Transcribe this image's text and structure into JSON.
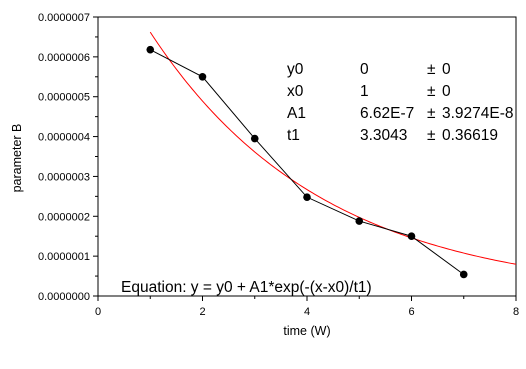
{
  "chart_data": {
    "type": "scatter",
    "xlabel": "time (W)",
    "ylabel": "parameter B",
    "xlim": [
      0,
      8
    ],
    "ylim": [
      0,
      7e-07
    ],
    "x_ticks": [
      0,
      2,
      4,
      6,
      8
    ],
    "x_tick_labels": [
      "0",
      "2",
      "4",
      "6",
      "8"
    ],
    "y_ticks": [
      0,
      1e-07,
      2e-07,
      3e-07,
      4e-07,
      5e-07,
      6e-07,
      7e-07
    ],
    "y_tick_labels": [
      "0.0000000",
      "0.0000001",
      "0.0000002",
      "0.0000003",
      "0.0000004",
      "0.0000005",
      "0.0000006",
      "0.0000007"
    ],
    "grid": false,
    "series": [
      {
        "kind": "data-points-with-line",
        "color": "#000000",
        "x": [
          1,
          2,
          3,
          4,
          5,
          6,
          7
        ],
        "y": [
          6.18e-07,
          5.5e-07,
          3.95e-07,
          2.48e-07,
          1.88e-07,
          1.5e-07,
          5.4e-08
        ]
      },
      {
        "kind": "fit-curve",
        "color": "#ff0000",
        "equation": "y = y0 + A1*exp(-(x-x0)/t1)",
        "params": {
          "y0": 0,
          "x0": 1,
          "A1": 6.62e-07,
          "t1": 3.3043
        },
        "x_range": [
          1,
          8
        ]
      }
    ],
    "annotations": {
      "params_table": [
        {
          "name": "y0",
          "value": "0",
          "pm": "±",
          "err": "0"
        },
        {
          "name": "x0",
          "value": "1",
          "pm": "±",
          "err": "0"
        },
        {
          "name": "A1",
          "value": "6.62E-7",
          "pm": "±",
          "err": "3.9274E-8"
        },
        {
          "name": "t1",
          "value": "3.3043",
          "pm": "±",
          "err": "0.36619"
        }
      ],
      "equation_text": "Equation: y = y0 + A1*exp(-(x-x0)/t1)"
    }
  }
}
